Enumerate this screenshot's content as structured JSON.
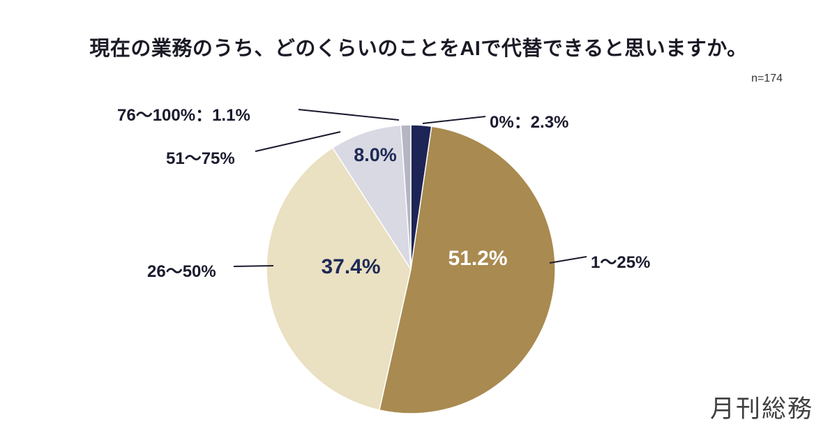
{
  "chart_data": {
    "type": "pie",
    "title": "現在の業務のうち、どのくらいのことをAIで代替できると思いますか。",
    "sample_size": "n=174",
    "start_angle_deg": 0,
    "direction": "clockwise",
    "legend_position": "outside-callouts",
    "slices": [
      {
        "label": "0%",
        "value": 2.3,
        "color": "#1d2556"
      },
      {
        "label": "1〜25%",
        "value": 51.2,
        "color": "#a98a50"
      },
      {
        "label": "26〜50%",
        "value": 37.4,
        "color": "#eae0c2"
      },
      {
        "label": "51〜75%",
        "value": 8.0,
        "color": "#d8d9e2"
      },
      {
        "label": "76〜100%",
        "value": 1.1,
        "color": "#b4b6c3"
      }
    ]
  },
  "labels": {
    "outer_0": "0%：2.3%",
    "outer_1_25": "1〜25%",
    "outer_26_50": "26〜50%",
    "outer_51_75": "51〜75%",
    "outer_76_100": "76〜100%：1.1%",
    "inner_1_25": "51.2%",
    "inner_26_50": "37.4%",
    "inner_51_75": "8.0%"
  },
  "colors": {
    "accent_navy": "#1e2a56",
    "leader_line": "#1a1b2e",
    "background": "#ffffff"
  },
  "footer": {
    "logo": "月刊総務"
  }
}
